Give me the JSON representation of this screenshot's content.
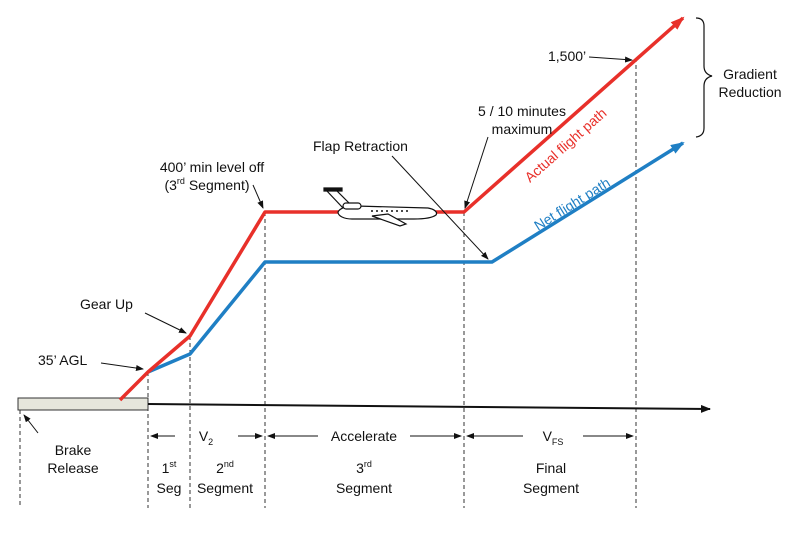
{
  "colors": {
    "actual": "#e8302a",
    "net": "#1f7fc4",
    "runway": "#e6e6dc",
    "ink": "#111111"
  },
  "labels": {
    "gradient": [
      "Gradient",
      "Reduction"
    ],
    "altitude_1500": "1,500’",
    "max_time": [
      "5 / 10 minutes",
      "maximum"
    ],
    "flap_retraction": "Flap Retraction",
    "level_off": "400’ min level off",
    "third_seg_paren_open": "(3",
    "third_seg_paren_sup": "rd",
    "third_seg_paren_close": " Segment)",
    "gear_up": "Gear Up",
    "agl": "35’ AGL",
    "actual_path": "Actual flight path",
    "net_path": "Net flight path",
    "brake_release": [
      "Brake",
      "Release"
    ],
    "v2_main": "V",
    "v2_sub": "2",
    "accelerate": "Accelerate",
    "vfs_main": "V",
    "vfs_sub": "FS",
    "seg1_num": "1",
    "seg1_sup": "st",
    "seg1_word": "Seg",
    "seg2_num": "2",
    "seg2_sup": "nd",
    "seg2_word": "Segment",
    "seg3_num": "3",
    "seg3_sup": "rd",
    "seg3_word": "Segment",
    "final_line1": "Final",
    "final_line2": "Segment"
  },
  "icons": {
    "aircraft": "jet-aircraft-icon"
  }
}
